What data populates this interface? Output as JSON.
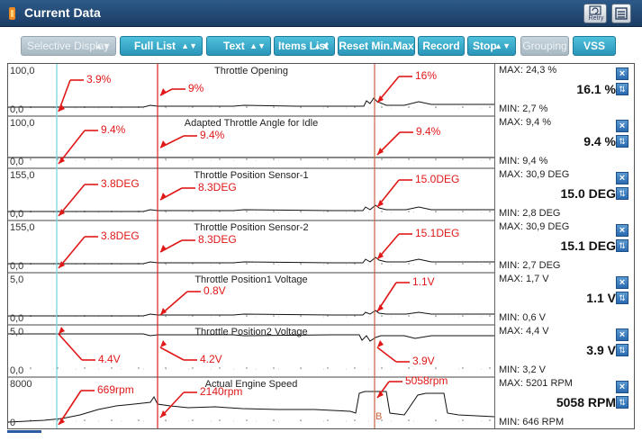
{
  "window": {
    "title": "Current Data",
    "retry_label": "Retry",
    "accent": "#1b3d63"
  },
  "toolbar": {
    "buttons": [
      {
        "label": "Selective Display",
        "dropdown": true,
        "enabled": false
      },
      {
        "label": "Full List",
        "dropdown": true,
        "enabled": true
      },
      {
        "label": "Text",
        "dropdown": true,
        "enabled": true
      },
      {
        "label": "Items List",
        "dropdown": true,
        "enabled": true
      },
      {
        "label": "Reset Min.Max",
        "dropdown": false,
        "enabled": true
      },
      {
        "label": "Record",
        "dropdown": false,
        "enabled": true
      },
      {
        "label": "Stop",
        "dropdown": true,
        "enabled": true
      },
      {
        "label": "Grouping",
        "dropdown": false,
        "enabled": false
      },
      {
        "label": "VSS",
        "dropdown": false,
        "enabled": true
      }
    ]
  },
  "colors": {
    "cursor_cyan": "#7fd8e0",
    "cursor_red": "#e02020",
    "cursor_orange": "#c8643c",
    "annotation": "#e01818"
  },
  "marker_label": "B",
  "graphs": [
    {
      "name": "Throttle Opening",
      "ymax": "100,0",
      "ymin": "0,0",
      "max": "MAX:  24,3 %",
      "min": "MIN:  2,7 %",
      "current": "16.1 %",
      "annotations": [
        "3.9%",
        "9%",
        "16%"
      ]
    },
    {
      "name": "Adapted Throttle Angle for Idle",
      "ymax": "100,0",
      "ymin": "0,0",
      "max": "MAX:  9,4 %",
      "min": "MIN:  9,4 %",
      "current": "9.4 %",
      "annotations": [
        "9.4%",
        "9.4%",
        "9.4%"
      ]
    },
    {
      "name": "Throttle Position Sensor-1",
      "ymax": "155,0",
      "ymin": "0,0",
      "max": "MAX:  30,9 DEG",
      "min": "MIN:  2,8 DEG",
      "current": "15.0 DEG",
      "annotations": [
        "3.8DEG",
        "8.3DEG",
        "15.0DEG"
      ]
    },
    {
      "name": "Throttle Position Sensor-2",
      "ymax": "155,0",
      "ymin": "0,0",
      "max": "MAX:  30,9 DEG",
      "min": "MIN:  2,7 DEG",
      "current": "15.1 DEG",
      "annotations": [
        "3.8DEG",
        "8.3DEG",
        "15.1DEG"
      ]
    },
    {
      "name": "Throttle Position1 Voltage",
      "ymax": "5,0",
      "ymin": "0,0",
      "max": "MAX:  1,7 V",
      "min": "MIN:  0,6 V",
      "current": "1.1 V",
      "annotations": [
        "0.8V",
        "1.1V"
      ]
    },
    {
      "name": "Throttle Position2 Voltage",
      "ymax": "5,0",
      "ymin": "0,0",
      "max": "MAX:  4,4 V",
      "min": "MIN:  3,2 V",
      "current": "3.9 V",
      "annotations": [
        "4.4V",
        "4.2V",
        "3.9V"
      ]
    },
    {
      "name": "Actual Engine Speed",
      "ymax": "8000",
      "ymin": "0",
      "max": "MAX:  5201 RPM",
      "min": "MIN:  646 RPM",
      "current": "5058 RPM",
      "annotations": [
        "669rpm",
        "2140rpm",
        "5058rpm"
      ]
    }
  ]
}
